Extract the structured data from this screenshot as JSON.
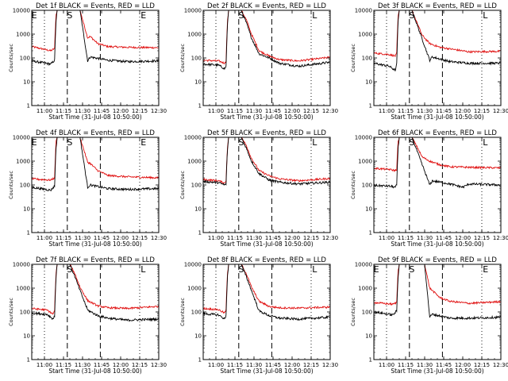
{
  "chart_data": {
    "type": "line",
    "xlabel": "Start Time (31-Jul-08 10:50:00)",
    "ylabel": "Counts/sec",
    "ylim": [
      1,
      10000
    ],
    "yscale": "log",
    "xlim_minutes_after_start": [
      0,
      100
    ],
    "x_tick_labels": [
      "11:00",
      "11:15",
      "11:30",
      "11:45",
      "12:00",
      "12:15",
      "12:30"
    ],
    "y_tick_labels": [
      "1",
      "10",
      "100",
      "1000",
      "10000"
    ],
    "colors": {
      "events": "#000000",
      "lld": "#e01010"
    },
    "dotted_lines": [
      "11:00",
      "12:15"
    ],
    "dashed_lines": [
      "11:18",
      "11:44"
    ],
    "panels": [
      {
        "title": "Det 1f BLACK = Events, RED = LLD",
        "markers": [
          {
            "label": "E",
            "time": "10:51"
          },
          {
            "label": "S",
            "time": "11:19"
          },
          {
            "label": "E",
            "time": "12:17"
          }
        ],
        "events": [
          [
            0,
            75
          ],
          [
            15,
            55
          ],
          [
            18,
            80
          ],
          [
            19,
            3000
          ],
          [
            20,
            10000
          ],
          [
            24,
            10000
          ],
          [
            26,
            10000
          ],
          [
            30,
            10000
          ],
          [
            34,
            10000
          ],
          [
            38,
            10000
          ],
          [
            44,
            75
          ],
          [
            46,
            110
          ],
          [
            60,
            80
          ],
          [
            75,
            70
          ],
          [
            99,
            75
          ]
        ],
        "lld": [
          [
            0,
            300
          ],
          [
            15,
            200
          ],
          [
            18,
            250
          ],
          [
            19,
            6000
          ],
          [
            20,
            10000
          ],
          [
            26,
            10000
          ],
          [
            38,
            10000
          ],
          [
            44,
            700
          ],
          [
            46,
            800
          ],
          [
            52,
            400
          ],
          [
            60,
            300
          ],
          [
            75,
            280
          ],
          [
            99,
            270
          ]
        ]
      },
      {
        "title": "Det 2f BLACK = Events, RED = LLD",
        "markers": [
          {
            "label": "S",
            "time": "11:19"
          },
          {
            "label": "L",
            "time": "12:17"
          }
        ],
        "events": [
          [
            0,
            55
          ],
          [
            12,
            50
          ],
          [
            17,
            35
          ],
          [
            18,
            45
          ],
          [
            19,
            2000
          ],
          [
            20,
            10000
          ],
          [
            30,
            10000
          ],
          [
            34,
            3000
          ],
          [
            38,
            700
          ],
          [
            44,
            150
          ],
          [
            52,
            100
          ],
          [
            60,
            60
          ],
          [
            75,
            45
          ],
          [
            99,
            65
          ]
        ],
        "lld": [
          [
            0,
            80
          ],
          [
            12,
            75
          ],
          [
            17,
            60
          ],
          [
            18,
            75
          ],
          [
            19,
            3000
          ],
          [
            20,
            10000
          ],
          [
            30,
            10000
          ],
          [
            34,
            4000
          ],
          [
            38,
            1000
          ],
          [
            44,
            200
          ],
          [
            52,
            120
          ],
          [
            60,
            85
          ],
          [
            75,
            75
          ],
          [
            99,
            105
          ]
        ]
      },
      {
        "title": "Det 3f BLACK = Events, RED = LLD",
        "markers": [
          {
            "label": "S",
            "time": "11:19"
          },
          {
            "label": "L",
            "time": "12:17"
          }
        ],
        "events": [
          [
            0,
            60
          ],
          [
            12,
            45
          ],
          [
            17,
            30
          ],
          [
            18,
            55
          ],
          [
            19,
            3000
          ],
          [
            20,
            10000
          ],
          [
            30,
            10000
          ],
          [
            44,
            80
          ],
          [
            46,
            110
          ],
          [
            60,
            70
          ],
          [
            75,
            60
          ],
          [
            99,
            60
          ]
        ],
        "lld": [
          [
            0,
            160
          ],
          [
            12,
            140
          ],
          [
            17,
            120
          ],
          [
            18,
            160
          ],
          [
            19,
            5000
          ],
          [
            20,
            10000
          ],
          [
            30,
            10000
          ],
          [
            34,
            3000
          ],
          [
            38,
            900
          ],
          [
            44,
            400
          ],
          [
            52,
            280
          ],
          [
            60,
            240
          ],
          [
            75,
            180
          ],
          [
            99,
            190
          ]
        ]
      },
      {
        "title": "Det 4f BLACK = Events, RED = LLD",
        "markers": [
          {
            "label": "E",
            "time": "10:51"
          },
          {
            "label": "S",
            "time": "11:19"
          },
          {
            "label": "E",
            "time": "12:17"
          }
        ],
        "events": [
          [
            0,
            80
          ],
          [
            15,
            60
          ],
          [
            18,
            90
          ],
          [
            19,
            3000
          ],
          [
            20,
            10000
          ],
          [
            38,
            10000
          ],
          [
            44,
            80
          ],
          [
            46,
            100
          ],
          [
            60,
            70
          ],
          [
            75,
            65
          ],
          [
            99,
            70
          ]
        ],
        "lld": [
          [
            0,
            180
          ],
          [
            15,
            160
          ],
          [
            18,
            200
          ],
          [
            19,
            6000
          ],
          [
            20,
            10000
          ],
          [
            38,
            10000
          ],
          [
            44,
            900
          ],
          [
            46,
            800
          ],
          [
            52,
            400
          ],
          [
            60,
            250
          ],
          [
            75,
            220
          ],
          [
            99,
            200
          ]
        ]
      },
      {
        "title": "Det 5f BLACK = Events, RED = LLD",
        "markers": [
          {
            "label": "S",
            "time": "11:19"
          },
          {
            "label": "L",
            "time": "12:17"
          }
        ],
        "events": [
          [
            0,
            140
          ],
          [
            12,
            125
          ],
          [
            17,
            100
          ],
          [
            18,
            110
          ],
          [
            19,
            2500
          ],
          [
            20,
            10000
          ],
          [
            30,
            10000
          ],
          [
            34,
            3500
          ],
          [
            38,
            1000
          ],
          [
            44,
            300
          ],
          [
            52,
            160
          ],
          [
            60,
            130
          ],
          [
            75,
            110
          ],
          [
            99,
            130
          ]
        ],
        "lld": [
          [
            0,
            170
          ],
          [
            12,
            150
          ],
          [
            17,
            120
          ],
          [
            18,
            150
          ],
          [
            19,
            3500
          ],
          [
            20,
            10000
          ],
          [
            30,
            10000
          ],
          [
            34,
            4500
          ],
          [
            38,
            1300
          ],
          [
            44,
            400
          ],
          [
            52,
            240
          ],
          [
            60,
            180
          ],
          [
            75,
            150
          ],
          [
            99,
            185
          ]
        ]
      },
      {
        "title": "Det 6f BLACK = Events, RED = LLD",
        "markers": [
          {
            "label": "S",
            "time": "11:19"
          },
          {
            "label": "L",
            "time": "12:17"
          }
        ],
        "events": [
          [
            0,
            95
          ],
          [
            12,
            90
          ],
          [
            17,
            80
          ],
          [
            18,
            100
          ],
          [
            19,
            3000
          ],
          [
            20,
            10000
          ],
          [
            30,
            10000
          ],
          [
            44,
            100
          ],
          [
            46,
            150
          ],
          [
            60,
            110
          ],
          [
            70,
            80
          ],
          [
            75,
            110
          ],
          [
            99,
            100
          ]
        ],
        "lld": [
          [
            0,
            500
          ],
          [
            12,
            450
          ],
          [
            17,
            400
          ],
          [
            18,
            450
          ],
          [
            19,
            6000
          ],
          [
            20,
            10000
          ],
          [
            30,
            10000
          ],
          [
            34,
            4000
          ],
          [
            38,
            1500
          ],
          [
            44,
            1000
          ],
          [
            52,
            700
          ],
          [
            60,
            580
          ],
          [
            75,
            550
          ],
          [
            99,
            520
          ]
        ]
      },
      {
        "title": "Det 7f BLACK = Events, RED = LLD",
        "markers": [
          {
            "label": "S",
            "time": "11:19"
          },
          {
            "label": "L",
            "time": "12:17"
          }
        ],
        "events": [
          [
            0,
            90
          ],
          [
            12,
            80
          ],
          [
            17,
            50
          ],
          [
            18,
            70
          ],
          [
            19,
            2500
          ],
          [
            20,
            10000
          ],
          [
            30,
            10000
          ],
          [
            34,
            3000
          ],
          [
            38,
            800
          ],
          [
            44,
            120
          ],
          [
            52,
            70
          ],
          [
            60,
            55
          ],
          [
            75,
            45
          ],
          [
            99,
            50
          ]
        ],
        "lld": [
          [
            0,
            140
          ],
          [
            12,
            120
          ],
          [
            17,
            80
          ],
          [
            18,
            120
          ],
          [
            19,
            3500
          ],
          [
            20,
            10000
          ],
          [
            30,
            10000
          ],
          [
            34,
            4000
          ],
          [
            38,
            1100
          ],
          [
            44,
            300
          ],
          [
            52,
            180
          ],
          [
            60,
            150
          ],
          [
            75,
            140
          ],
          [
            99,
            170
          ]
        ]
      },
      {
        "title": "Det 8f BLACK = Events, RED = LLD",
        "markers": [
          {
            "label": "S",
            "time": "11:19"
          },
          {
            "label": "L",
            "time": "12:17"
          }
        ],
        "events": [
          [
            0,
            85
          ],
          [
            12,
            75
          ],
          [
            17,
            50
          ],
          [
            18,
            75
          ],
          [
            19,
            2500
          ],
          [
            20,
            10000
          ],
          [
            30,
            10000
          ],
          [
            34,
            3000
          ],
          [
            38,
            800
          ],
          [
            44,
            110
          ],
          [
            52,
            70
          ],
          [
            60,
            55
          ],
          [
            75,
            50
          ],
          [
            99,
            60
          ]
        ],
        "lld": [
          [
            0,
            140
          ],
          [
            12,
            125
          ],
          [
            17,
            90
          ],
          [
            18,
            130
          ],
          [
            19,
            3500
          ],
          [
            20,
            10000
          ],
          [
            30,
            10000
          ],
          [
            34,
            4000
          ],
          [
            38,
            1100
          ],
          [
            44,
            280
          ],
          [
            52,
            170
          ],
          [
            60,
            150
          ],
          [
            75,
            145
          ],
          [
            99,
            160
          ]
        ]
      },
      {
        "title": "Det 9f BLACK = Events, RED = LLD",
        "markers": [
          {
            "label": "E",
            "time": "10:51"
          },
          {
            "label": "S",
            "time": "11:19"
          },
          {
            "label": "E",
            "time": "12:17"
          }
        ],
        "events": [
          [
            0,
            100
          ],
          [
            15,
            75
          ],
          [
            18,
            110
          ],
          [
            19,
            2500
          ],
          [
            20,
            10000
          ],
          [
            40,
            10000
          ],
          [
            44,
            60
          ],
          [
            46,
            80
          ],
          [
            60,
            55
          ],
          [
            75,
            55
          ],
          [
            99,
            60
          ]
        ],
        "lld": [
          [
            0,
            250
          ],
          [
            15,
            210
          ],
          [
            18,
            250
          ],
          [
            19,
            5000
          ],
          [
            20,
            10000
          ],
          [
            40,
            10000
          ],
          [
            44,
            1000
          ],
          [
            46,
            800
          ],
          [
            52,
            400
          ],
          [
            60,
            280
          ],
          [
            75,
            230
          ],
          [
            99,
            270
          ]
        ]
      }
    ]
  }
}
